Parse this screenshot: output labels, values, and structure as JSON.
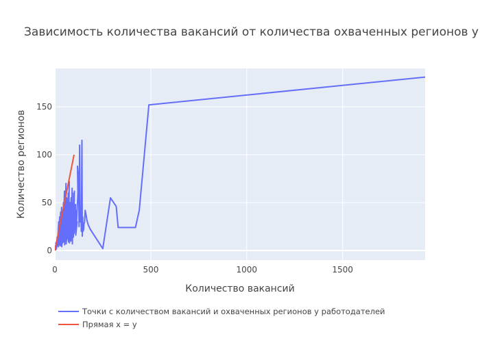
{
  "chart_data": {
    "type": "line",
    "title": "Зависимость количества вакансий от количества охваченных регионов у работодателей",
    "xlabel": "Количество вакансий",
    "ylabel": "Количество регионов",
    "xlim": [
      0,
      1930
    ],
    "ylim": [
      -10,
      190
    ],
    "x_ticks": [
      0,
      500,
      1000,
      1500
    ],
    "y_ticks": [
      0,
      50,
      100,
      150
    ],
    "grid": true,
    "legend_position": "bottom-left",
    "series": [
      {
        "name": "Точки с количеством вакансий и охваченных регионов у работодателей",
        "color": "#636efa",
        "x": [
          1,
          4,
          6,
          3,
          8,
          5,
          10,
          12,
          9,
          15,
          13,
          18,
          14,
          20,
          17,
          22,
          19,
          25,
          21,
          28,
          24,
          30,
          26,
          33,
          29,
          35,
          31,
          38,
          34,
          40,
          36,
          42,
          39,
          45,
          41,
          47,
          44,
          50,
          46,
          52,
          48,
          55,
          51,
          58,
          53,
          60,
          57,
          62,
          59,
          65,
          61,
          68,
          63,
          70,
          66,
          72,
          69,
          75,
          71,
          78,
          74,
          80,
          76,
          83,
          79,
          85,
          81,
          88,
          84,
          90,
          86,
          93,
          89,
          96,
          91,
          98,
          95,
          100,
          97,
          102,
          99,
          105,
          101,
          108,
          104,
          110,
          107,
          113,
          109,
          116,
          112,
          120,
          118,
          124,
          126,
          129,
          132,
          135,
          138,
          141,
          143,
          145,
          147,
          150,
          152,
          155,
          158,
          162,
          167,
          172,
          178,
          185,
          250,
          290,
          320,
          330,
          335,
          420,
          440,
          490,
          1930
        ],
        "y": [
          0,
          3,
          1,
          5,
          2,
          8,
          4,
          14,
          3,
          10,
          5,
          20,
          6,
          30,
          8,
          15,
          4,
          35,
          10,
          22,
          6,
          40,
          9,
          18,
          5,
          45,
          12,
          28,
          7,
          38,
          4,
          25,
          10,
          50,
          8,
          20,
          14,
          62,
          12,
          45,
          9,
          30,
          6,
          70,
          15,
          40,
          10,
          55,
          7,
          25,
          18,
          48,
          11,
          60,
          13,
          30,
          20,
          72,
          9,
          35,
          16,
          50,
          8,
          28,
          22,
          55,
          14,
          42,
          10,
          65,
          18,
          38,
          12,
          50,
          7,
          60,
          20,
          45,
          14,
          62,
          25,
          30,
          18,
          48,
          22,
          35,
          28,
          42,
          16,
          30,
          24,
          60,
          88,
          75,
          25,
          110,
          30,
          45,
          20,
          115,
          15,
          35,
          20,
          22,
          28,
          30,
          42,
          38,
          32,
          28,
          25,
          22,
          2,
          55,
          46,
          24,
          24,
          24,
          42,
          152,
          181
        ]
      },
      {
        "name": "Прямая x = y",
        "color": "#ef553b",
        "x": [
          0,
          100
        ],
        "y": [
          0,
          100
        ]
      }
    ]
  }
}
